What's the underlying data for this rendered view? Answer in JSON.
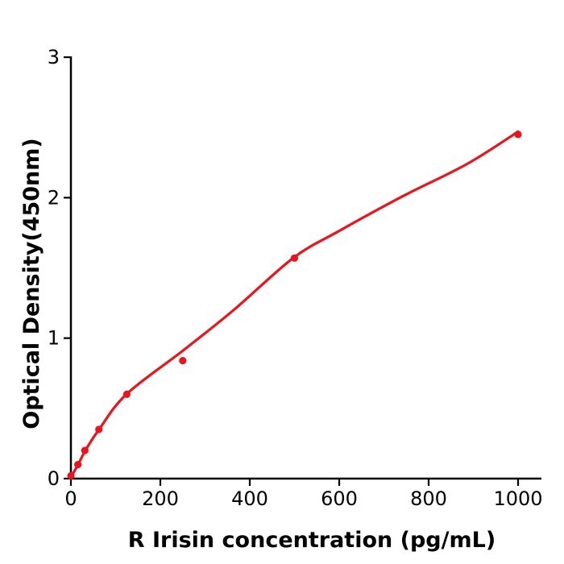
{
  "page": {
    "background": "#ffffff"
  },
  "chart_data": {
    "type": "scatter",
    "title": "",
    "xlabel": "R  Irisin concentration (pg/mL)",
    "ylabel": "Optical Density(450nm)",
    "xlim": [
      0,
      1052
    ],
    "ylim": [
      0,
      3
    ],
    "x_ticks": [
      0,
      200,
      400,
      600,
      800,
      1000
    ],
    "y_ticks": [
      0,
      1,
      2,
      3
    ],
    "grid": false,
    "legend_position": "none",
    "axis_color": "#000000",
    "series": [
      {
        "name": "standard-points",
        "type": "scatter",
        "color": "#ea141c",
        "marker": "circle",
        "x": [
          0,
          15.6,
          31.2,
          62.5,
          125,
          250,
          500,
          1000
        ],
        "y": [
          0.02,
          0.1,
          0.2,
          0.35,
          0.6,
          0.84,
          1.57,
          2.45
        ]
      },
      {
        "name": "fit-curve",
        "type": "line",
        "color": "#ea141c",
        "x": [
          0,
          16,
          36,
          63,
          124,
          250,
          364,
          497,
          598,
          742,
          886,
          1000
        ],
        "y": [
          0.01,
          0.1,
          0.22,
          0.35,
          0.6,
          0.91,
          1.2,
          1.57,
          1.76,
          2.01,
          2.24,
          2.47
        ]
      }
    ]
  }
}
